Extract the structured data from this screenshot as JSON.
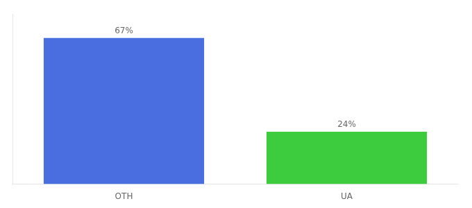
{
  "chart_data": {
    "type": "bar",
    "categories": [
      "OTH",
      "UA"
    ],
    "values": [
      67,
      24
    ],
    "value_labels": [
      "67%",
      "24%"
    ],
    "colors": [
      "#4a6ee0",
      "#3dcc3d"
    ],
    "ylim": [
      0,
      78
    ],
    "data_labels": true,
    "tick_labels": "x",
    "grid": false
  }
}
